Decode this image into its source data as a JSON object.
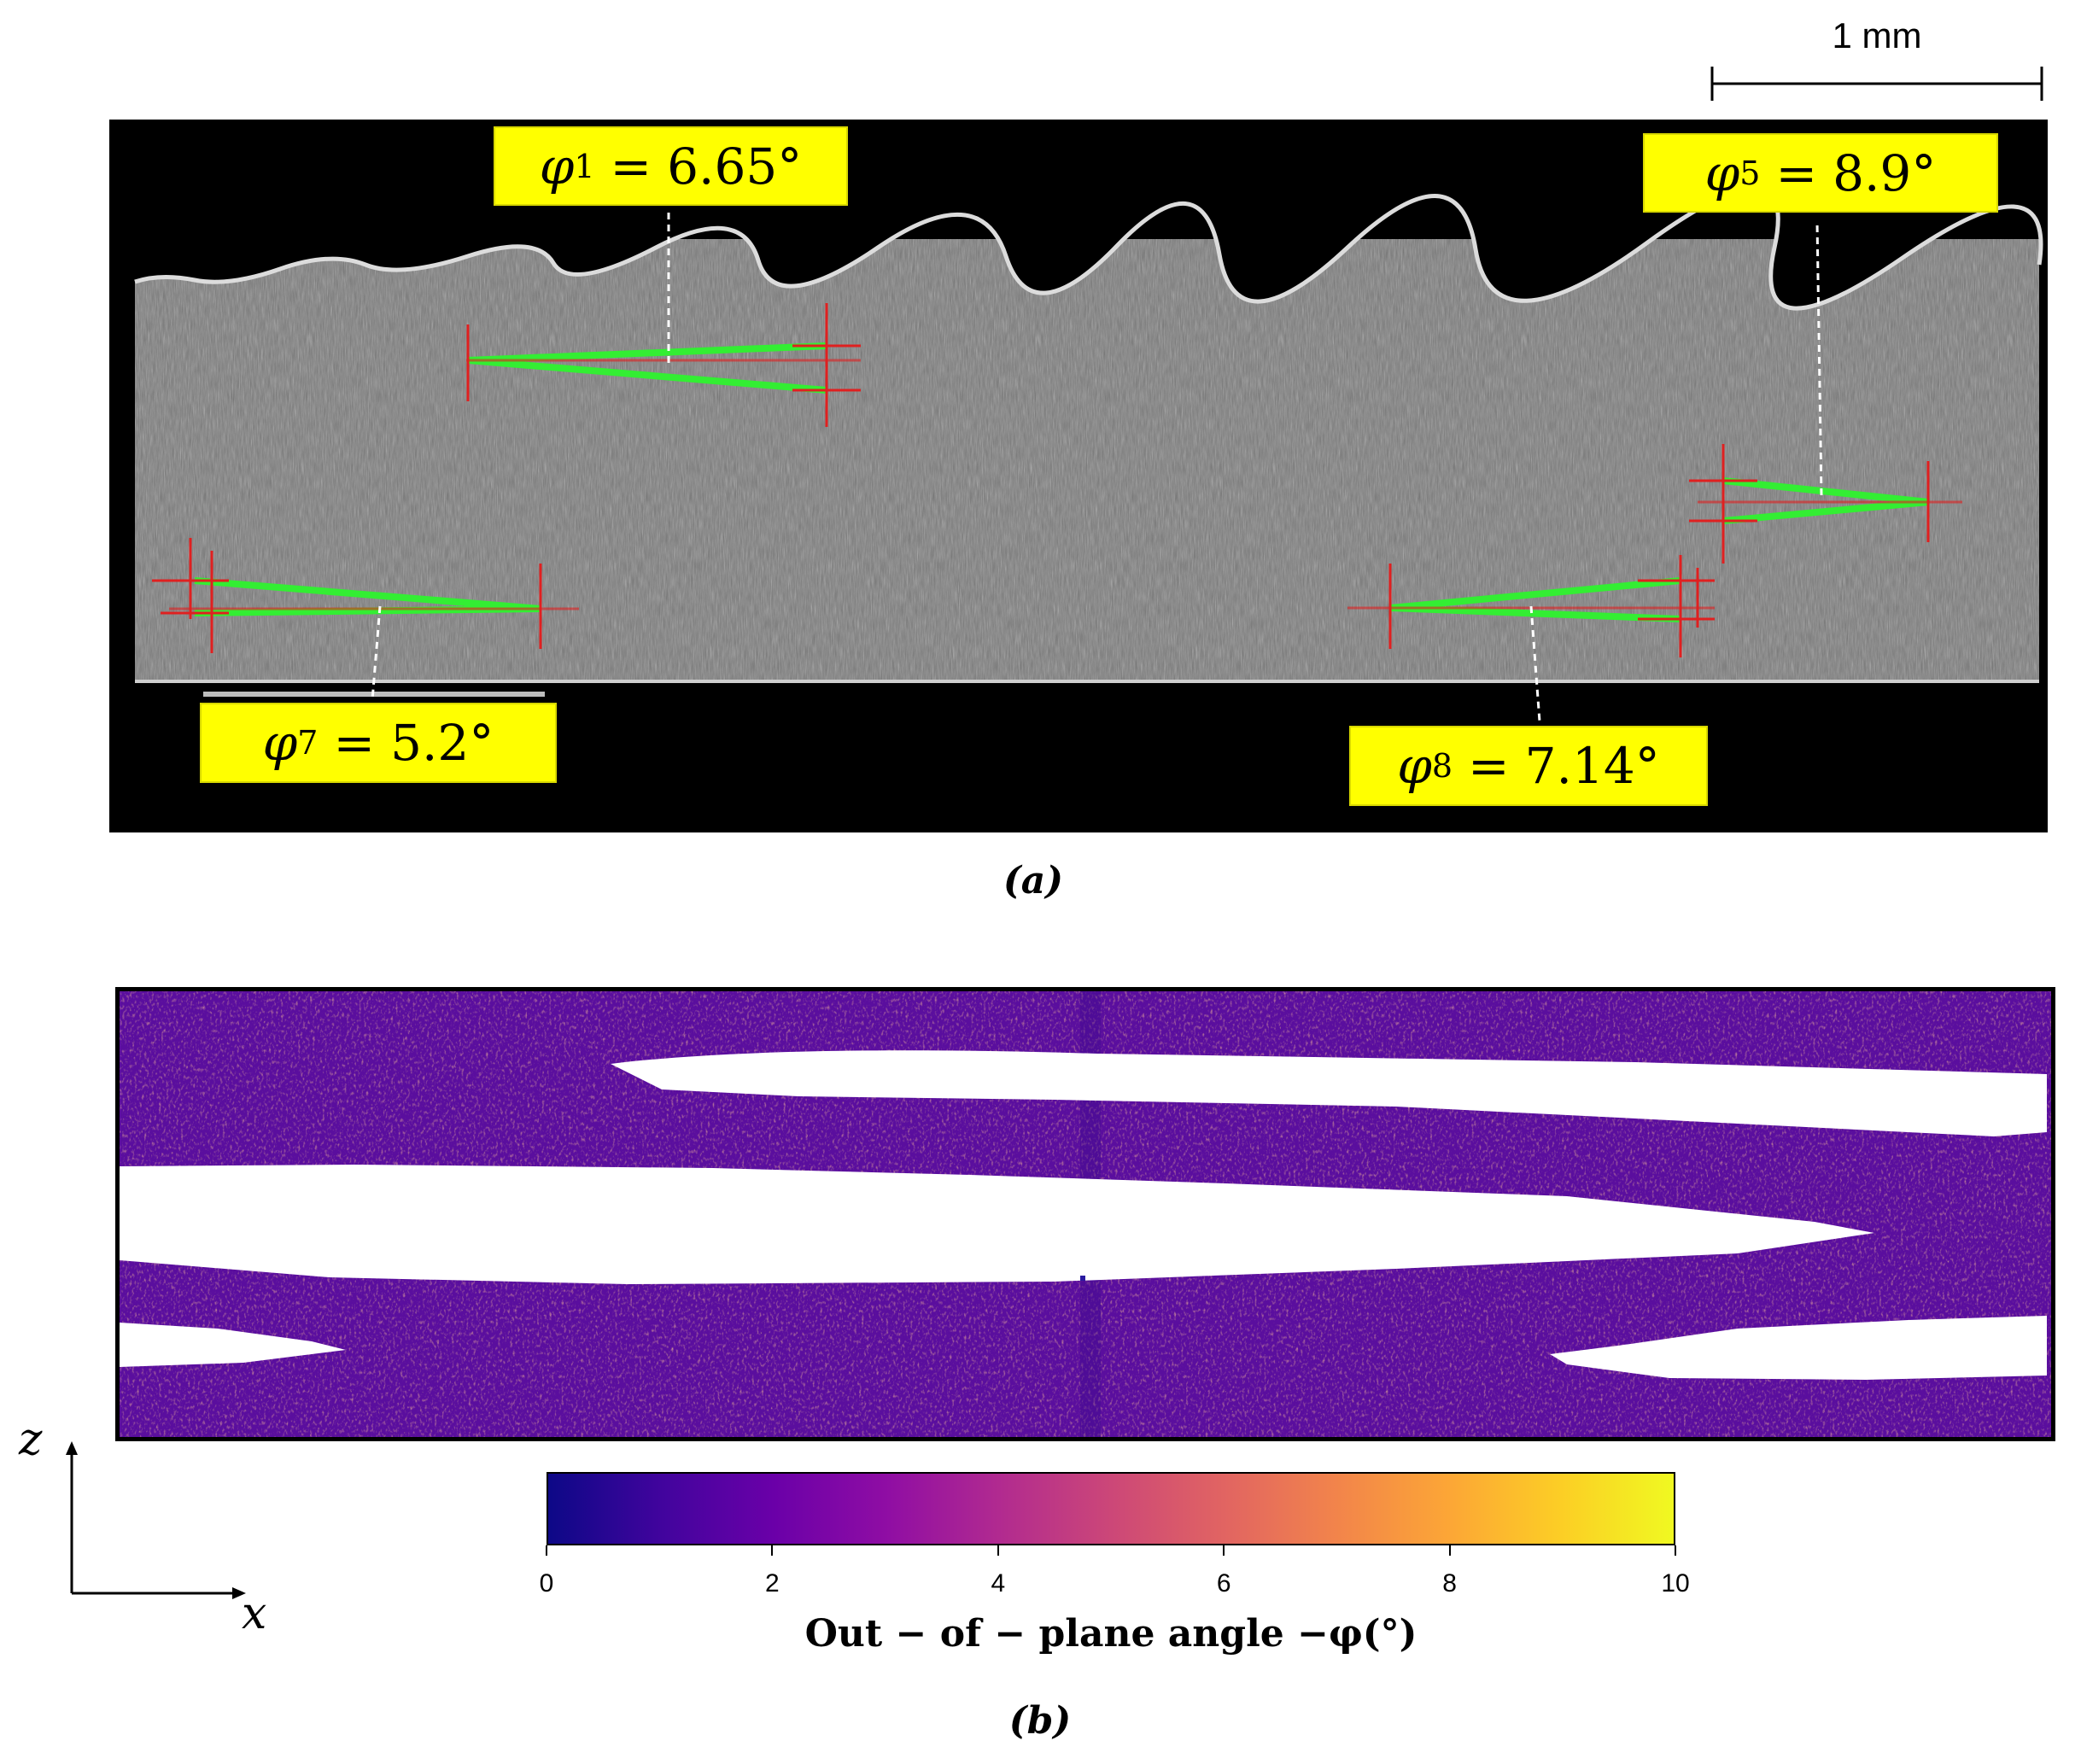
{
  "panel_a": {
    "label": "(a)",
    "scale_bar": "1 mm",
    "callouts": [
      {
        "symbol": "φ",
        "sub": "1",
        "value": "6.65°"
      },
      {
        "symbol": "φ",
        "sub": "5",
        "value": "8.9°"
      },
      {
        "symbol": "φ",
        "sub": "7",
        "value": "5.2°"
      },
      {
        "symbol": "φ",
        "sub": "8",
        "value": "7.14°"
      }
    ],
    "colors": {
      "callout_bg": "#ffff00",
      "measure_line": "#33ee33",
      "crosshair": "#e02020"
    }
  },
  "panel_b": {
    "label": "(b)",
    "axes": {
      "z": "z",
      "x": "x"
    },
    "colorbar": {
      "title": "Out − of − plane angle −φ(°)",
      "min": 0,
      "max": 10,
      "ticks": [
        "0",
        "2",
        "4",
        "6",
        "8",
        "10"
      ],
      "colormap": "plasma"
    }
  }
}
